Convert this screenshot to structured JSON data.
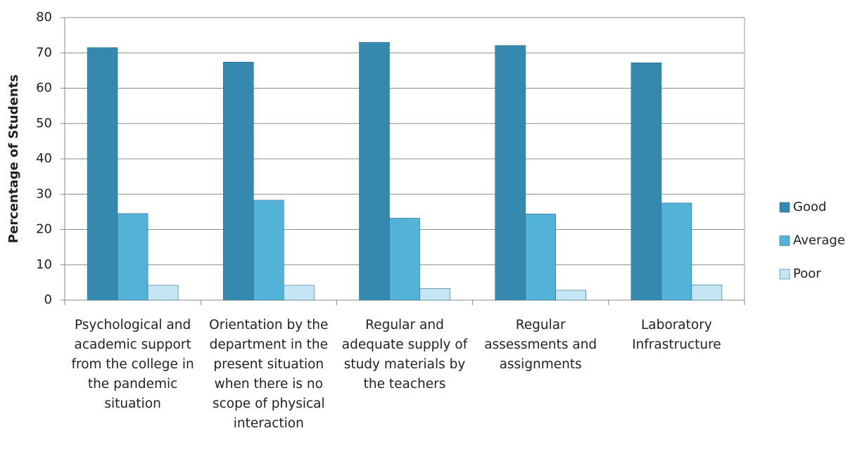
{
  "chart_data": {
    "type": "bar",
    "categories": [
      "Psychological and academic support from the college in the pandemic situation",
      "Orientation by the department in the present situation when there is no scope of physical interaction",
      "Regular and adequate supply of study materials by the teachers",
      "Regular assessments and assignments",
      "Laboratory Infrastructure"
    ],
    "series": [
      {
        "name": "Good",
        "color": "#3589ae",
        "values": [
          71.5,
          67.4,
          73.0,
          72.1,
          67.2
        ]
      },
      {
        "name": "Average",
        "color": "#52b2d8",
        "values": [
          24.5,
          28.3,
          23.2,
          24.4,
          27.5
        ]
      },
      {
        "name": "Poor",
        "color": "#c3e5f4",
        "values": [
          4.2,
          4.2,
          3.3,
          2.8,
          4.3
        ]
      }
    ],
    "ylabel": "Percentage of Students",
    "ylim": [
      0,
      80
    ],
    "yticks": [
      0,
      10,
      20,
      30,
      40,
      50,
      60,
      70,
      80
    ],
    "grid": true,
    "legend": "right"
  }
}
